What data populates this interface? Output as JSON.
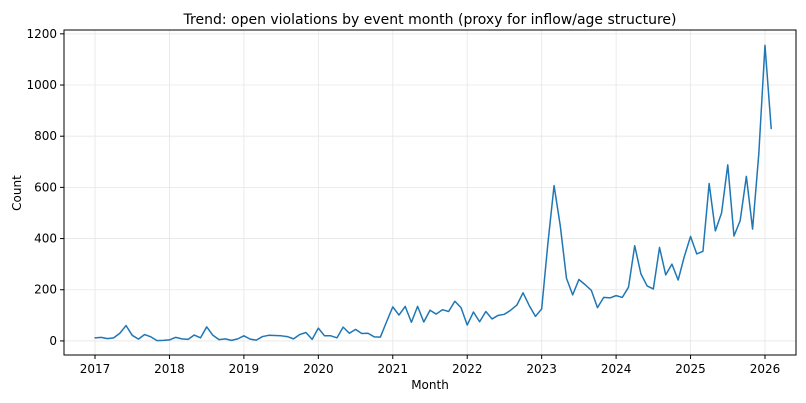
{
  "chart_data": {
    "type": "line",
    "title": "Trend: open violations by event month (proxy for inflow/age structure)",
    "xlabel": "Month",
    "ylabel": "Count",
    "x_start": "2017-01",
    "x_end": "2026-02",
    "xlim": [
      "2016-08",
      "2026-06"
    ],
    "ylim": [
      -55,
      1215
    ],
    "x_ticks": [
      "2017",
      "2018",
      "2019",
      "2020",
      "2021",
      "2022",
      "2023",
      "2024",
      "2025",
      "2026"
    ],
    "y_ticks": [
      0,
      200,
      400,
      600,
      800,
      1000,
      1200
    ],
    "grid": true,
    "legend": "none",
    "series": [
      {
        "color": "#1f77b4",
        "x": [
          "2017-01",
          "2017-02",
          "2017-03",
          "2017-04",
          "2017-05",
          "2017-06",
          "2017-07",
          "2017-08",
          "2017-09",
          "2017-10",
          "2017-11",
          "2017-12",
          "2018-01",
          "2018-02",
          "2018-03",
          "2018-04",
          "2018-05",
          "2018-06",
          "2018-07",
          "2018-08",
          "2018-09",
          "2018-10",
          "2018-11",
          "2018-12",
          "2019-01",
          "2019-02",
          "2019-03",
          "2019-04",
          "2019-05",
          "2019-06",
          "2019-07",
          "2019-08",
          "2019-09",
          "2019-10",
          "2019-11",
          "2019-12",
          "2020-01",
          "2020-02",
          "2020-03",
          "2020-04",
          "2020-05",
          "2020-06",
          "2020-07",
          "2020-08",
          "2020-09",
          "2020-10",
          "2020-11",
          "2020-12",
          "2021-01",
          "2021-02",
          "2021-03",
          "2021-04",
          "2021-05",
          "2021-06",
          "2021-07",
          "2021-08",
          "2021-09",
          "2021-10",
          "2021-11",
          "2021-12",
          "2022-01",
          "2022-02",
          "2022-03",
          "2022-04",
          "2022-05",
          "2022-06",
          "2022-07",
          "2022-08",
          "2022-09",
          "2022-10",
          "2022-11",
          "2022-12",
          "2023-01",
          "2023-02",
          "2023-03",
          "2023-04",
          "2023-05",
          "2023-06",
          "2023-07",
          "2023-08",
          "2023-09",
          "2023-10",
          "2023-11",
          "2023-12",
          "2024-01",
          "2024-02",
          "2024-03",
          "2024-04",
          "2024-05",
          "2024-06",
          "2024-07",
          "2024-08",
          "2024-09",
          "2024-10",
          "2024-11",
          "2024-12",
          "2025-01",
          "2025-02",
          "2025-03",
          "2025-04",
          "2025-05",
          "2025-06",
          "2025-07",
          "2025-08",
          "2025-09",
          "2025-10",
          "2025-11",
          "2025-12",
          "2026-01",
          "2026-02"
        ],
        "values": [
          12,
          14,
          9,
          12,
          30,
          60,
          22,
          7,
          25,
          16,
          1,
          2,
          4,
          14,
          8,
          6,
          23,
          12,
          55,
          22,
          5,
          8,
          2,
          8,
          20,
          7,
          3,
          17,
          22,
          21,
          20,
          17,
          8,
          25,
          33,
          6,
          50,
          20,
          20,
          12,
          54,
          30,
          45,
          29,
          30,
          16,
          15,
          75,
          133,
          101,
          135,
          73,
          135,
          74,
          120,
          105,
          122,
          115,
          155,
          130,
          62,
          113,
          75,
          115,
          86,
          100,
          104,
          120,
          140,
          188,
          138,
          96,
          125,
          380,
          607,
          450,
          245,
          180,
          240,
          220,
          198,
          130,
          170,
          168,
          177,
          170,
          210,
          372,
          262,
          215,
          203,
          365,
          258,
          300,
          238,
          330,
          408,
          340,
          350,
          615,
          430,
          500,
          688,
          410,
          470,
          643,
          437,
          730,
          1155,
          830
        ]
      }
    ]
  }
}
